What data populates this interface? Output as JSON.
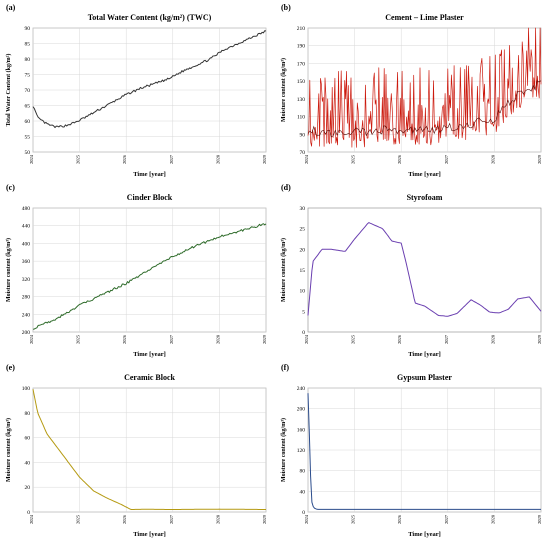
{
  "figure": {
    "x_tick_labels": [
      "2024",
      "2025",
      "2026",
      "2027",
      "2028",
      "2029"
    ],
    "xlabel": "Time [year]"
  },
  "chart_data": [
    {
      "type": "line",
      "panel_label": "(a)",
      "title": "Total Water Content (kg/m²) (TWC)",
      "ylabel": "Total Water Content (kg/m²)",
      "xlabel": "Time [year]",
      "ylim": [
        50,
        90
      ],
      "yticks": [
        50,
        55,
        60,
        65,
        70,
        75,
        80,
        85,
        90
      ],
      "xlim": [
        2024,
        2029
      ],
      "grid": true,
      "color": "#333333",
      "noise": 0.35,
      "series": [
        {
          "x": [
            2024.0,
            2024.1,
            2024.3,
            2024.5,
            2024.7,
            2024.9,
            2025.1,
            2025.4,
            2025.7,
            2026.0,
            2026.3,
            2026.6,
            2026.9,
            2027.2,
            2027.5,
            2027.8,
            2028.1,
            2028.4,
            2028.7,
            2029.0
          ],
          "values": [
            65,
            61,
            59,
            58,
            58.5,
            59.5,
            61,
            63.5,
            66,
            68.5,
            70.5,
            72,
            73.5,
            76,
            78,
            80,
            83,
            85,
            87,
            89
          ]
        }
      ]
    },
    {
      "type": "line",
      "panel_label": "(b)",
      "title": "Cement – Lime Plaster",
      "ylabel": "Moisture content (kg/m³)",
      "xlabel": "Time [year]",
      "ylim": [
        70,
        210
      ],
      "yticks": [
        70,
        90,
        110,
        130,
        150,
        170,
        190,
        210
      ],
      "xlim": [
        2024,
        2029
      ],
      "grid": true,
      "color": "#cc1a0e",
      "noise": 30,
      "spiky": true,
      "series": [
        {
          "x": [
            2024.0,
            2024.5,
            2025.0,
            2025.5,
            2026.0,
            2026.5,
            2027.0,
            2027.5,
            2028.0,
            2028.5,
            2029.0
          ],
          "values": [
            95,
            90,
            92,
            95,
            95,
            95,
            97,
            102,
            108,
            135,
            148
          ]
        }
      ]
    },
    {
      "type": "line",
      "panel_label": "(c)",
      "title": "Cinder Block",
      "ylabel": "Moisture content (kg/m³)",
      "xlabel": "Time [year]",
      "ylim": [
        200,
        480
      ],
      "yticks": [
        200,
        240,
        280,
        320,
        360,
        400,
        440,
        480
      ],
      "xlim": [
        2024,
        2029
      ],
      "grid": true,
      "color": "#2e6b2a",
      "noise": 2.5,
      "series": [
        {
          "x": [
            2024.0,
            2024.5,
            2025.0,
            2025.5,
            2026.0,
            2026.5,
            2027.0,
            2027.5,
            2028.0,
            2028.5,
            2029.0
          ],
          "values": [
            208,
            230,
            260,
            285,
            310,
            340,
            370,
            395,
            415,
            430,
            445
          ]
        }
      ]
    },
    {
      "type": "line",
      "panel_label": "(d)",
      "title": "Styrofoam",
      "ylabel": "Moisture content (kg/m³)",
      "xlabel": "Time [year]",
      "ylim": [
        0,
        30
      ],
      "yticks": [
        0,
        5,
        10,
        15,
        20,
        25,
        30
      ],
      "xlim": [
        2024,
        2029
      ],
      "grid": false,
      "color": "#6a3fb0",
      "noise": 0,
      "series": [
        {
          "x": [
            2024.0,
            2024.1,
            2024.3,
            2024.5,
            2024.8,
            2025.0,
            2025.3,
            2025.6,
            2025.8,
            2026.0,
            2026.1,
            2026.3,
            2026.5,
            2026.8,
            2027.0,
            2027.2,
            2027.5,
            2027.7,
            2027.9,
            2028.1,
            2028.3,
            2028.5,
            2028.75,
            2029.0
          ],
          "values": [
            4,
            17,
            20,
            20,
            19.5,
            22.5,
            26.5,
            25,
            22,
            21.5,
            17,
            7,
            6.3,
            4,
            3.8,
            4.5,
            7.8,
            6.5,
            4.8,
            4.6,
            5.5,
            8,
            8.5,
            5
          ]
        }
      ]
    },
    {
      "type": "line",
      "panel_label": "(e)",
      "title": "Ceramic Block",
      "ylabel": "Moisture content (kg/m³)",
      "xlabel": "Time [year]",
      "ylim": [
        0,
        100
      ],
      "yticks": [
        0,
        20,
        40,
        60,
        80,
        100
      ],
      "xlim": [
        2024,
        2029
      ],
      "grid": true,
      "color": "#b59a12",
      "noise": 0,
      "series": [
        {
          "x": [
            2024.0,
            2024.1,
            2024.3,
            2024.6,
            2025.0,
            2025.3,
            2025.6,
            2025.9,
            2026.1,
            2026.4,
            2027.0,
            2028.0,
            2029.0
          ],
          "values": [
            99,
            80,
            63,
            48,
            28,
            17,
            11,
            6,
            2,
            2.2,
            2,
            2.3,
            2
          ]
        }
      ]
    },
    {
      "type": "line",
      "panel_label": "(f)",
      "title": "Gypsum Plaster",
      "ylabel": "Moisture content (kg/m³)",
      "xlabel": "Time [year]",
      "ylim": [
        0,
        240
      ],
      "yticks": [
        0,
        40,
        80,
        120,
        160,
        200,
        240
      ],
      "xlim": [
        2024,
        2029
      ],
      "grid": true,
      "color": "#2b4c8c",
      "noise": 0,
      "series": [
        {
          "x": [
            2024.0,
            2024.02,
            2024.05,
            2024.08,
            2024.12,
            2024.2,
            2025.0,
            2026.0,
            2027.0,
            2028.0,
            2029.0
          ],
          "values": [
            230,
            180,
            80,
            20,
            8,
            5,
            5,
            5,
            5,
            5,
            5
          ]
        }
      ]
    }
  ]
}
